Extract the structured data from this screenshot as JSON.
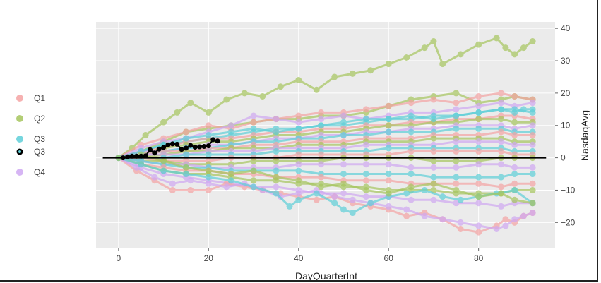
{
  "chart_data": {
    "type": "line",
    "xlabel": "DayQuarterInt",
    "ylabel": "NasdaqAvg",
    "xlim": [
      -5,
      97
    ],
    "ylim": [
      -28,
      42
    ],
    "x_ticks": [
      0,
      20,
      40,
      60,
      80
    ],
    "y_ticks": [
      40,
      30,
      20,
      10,
      0,
      -10,
      -20
    ],
    "y_axis_side": "right",
    "grid": true,
    "legend_placement": "left",
    "reference_line_y": 0,
    "colors": {
      "Q1": "#F4A3A3",
      "Q2": "#A6C65E",
      "Q3": "#5ECFD8",
      "Q4": "#CFA8F2",
      "highlight": "#000000",
      "plot_bg": "#EBEBEB",
      "grid": "#FFFFFF"
    },
    "legend": [
      {
        "label": "Q1",
        "color": "#F4A3A3",
        "style": "marker"
      },
      {
        "label": "Q2",
        "color": "#A6C65E",
        "style": "marker"
      },
      {
        "label": "Q3",
        "color": "#5ECFD8",
        "style": "marker"
      },
      {
        "label": "Q3",
        "color": "#000000",
        "style": "highlight"
      },
      {
        "label": "Q4",
        "color": "#CFA8F2",
        "style": "marker"
      }
    ],
    "series": [
      {
        "group": "Q2",
        "x": [
          0,
          3,
          6,
          10,
          13,
          16,
          20,
          24,
          28,
          32,
          36,
          40,
          44,
          48,
          52,
          56,
          60,
          64,
          68,
          70,
          72,
          76,
          80,
          84,
          86,
          88,
          90,
          92
        ],
        "y": [
          0,
          3,
          7,
          11,
          14,
          17,
          14,
          18,
          20,
          19,
          22,
          24,
          21,
          25,
          26,
          27,
          29,
          31,
          34,
          36,
          29,
          32,
          35,
          37,
          34,
          32,
          34,
          36
        ]
      },
      {
        "group": "Q2",
        "x": [
          0,
          5,
          10,
          15,
          20,
          25,
          30,
          35,
          40,
          45,
          50,
          55,
          60,
          65,
          70,
          75,
          80,
          85,
          88,
          92
        ],
        "y": [
          0,
          2,
          5,
          8,
          9,
          10,
          11,
          12,
          12,
          13,
          13,
          14,
          16,
          18,
          19,
          20,
          17,
          18,
          19,
          18
        ]
      },
      {
        "group": "Q1",
        "x": [
          0,
          5,
          10,
          15,
          20,
          25,
          30,
          35,
          40,
          45,
          50,
          55,
          60,
          65,
          70,
          75,
          80,
          85,
          88,
          92
        ],
        "y": [
          0,
          4,
          6,
          8,
          10,
          9,
          11,
          12,
          13,
          14,
          14,
          15,
          16,
          17,
          18,
          17,
          19,
          20,
          19,
          18
        ]
      },
      {
        "group": "Q4",
        "x": [
          0,
          5,
          10,
          15,
          20,
          25,
          30,
          35,
          40,
          45,
          50,
          55,
          60,
          65,
          70,
          75,
          80,
          85,
          88,
          92
        ],
        "y": [
          0,
          3,
          5,
          6,
          8,
          10,
          13,
          12,
          11,
          12,
          13,
          12,
          13,
          14,
          14,
          15,
          16,
          17,
          16,
          17
        ]
      },
      {
        "group": "Q3",
        "x": [
          0,
          5,
          10,
          15,
          20,
          25,
          30,
          35,
          40,
          45,
          50,
          55,
          60,
          65,
          70,
          75,
          80,
          85,
          88,
          92
        ],
        "y": [
          0,
          2,
          4,
          5,
          6,
          7,
          8,
          9,
          9,
          10,
          10,
          11,
          12,
          12,
          13,
          13,
          14,
          15,
          15,
          14
        ]
      },
      {
        "group": "Q1",
        "x": [
          0,
          5,
          10,
          15,
          20,
          25,
          30,
          35,
          40,
          45,
          50,
          55,
          60,
          65,
          70,
          75,
          80,
          85,
          88,
          92
        ],
        "y": [
          0,
          2,
          3,
          5,
          6,
          6,
          7,
          8,
          8,
          9,
          9,
          10,
          10,
          11,
          11,
          12,
          12,
          13,
          13,
          12
        ]
      },
      {
        "group": "Q2",
        "x": [
          0,
          5,
          10,
          15,
          20,
          25,
          30,
          35,
          40,
          45,
          50,
          55,
          60,
          65,
          70,
          75,
          80,
          85,
          88,
          92
        ],
        "y": [
          0,
          1,
          3,
          4,
          5,
          5,
          6,
          7,
          7,
          8,
          8,
          9,
          10,
          10,
          11,
          11,
          12,
          12,
          11,
          11
        ]
      },
      {
        "group": "Q4",
        "x": [
          0,
          5,
          10,
          15,
          20,
          25,
          30,
          35,
          40,
          45,
          50,
          55,
          60,
          65,
          70,
          75,
          80,
          85,
          88,
          92
        ],
        "y": [
          0,
          2,
          2,
          3,
          4,
          4,
          5,
          6,
          6,
          7,
          7,
          8,
          8,
          9,
          9,
          10,
          10,
          10,
          9,
          10
        ]
      },
      {
        "group": "Q3",
        "x": [
          0,
          5,
          10,
          15,
          20,
          25,
          30,
          35,
          40,
          45,
          50,
          55,
          60,
          65,
          70,
          75,
          80,
          85,
          88,
          92
        ],
        "y": [
          0,
          1,
          2,
          3,
          3,
          4,
          5,
          5,
          6,
          6,
          7,
          7,
          8,
          8,
          8,
          9,
          9,
          9,
          8,
          8
        ]
      },
      {
        "group": "Q1",
        "x": [
          0,
          5,
          10,
          15,
          20,
          25,
          30,
          35,
          40,
          45,
          50,
          55,
          60,
          65,
          70,
          75,
          80,
          85,
          88,
          92
        ],
        "y": [
          0,
          1,
          2,
          2,
          3,
          3,
          4,
          4,
          5,
          5,
          5,
          6,
          6,
          6,
          7,
          7,
          7,
          8,
          7,
          7
        ]
      },
      {
        "group": "Q2",
        "x": [
          0,
          5,
          10,
          15,
          20,
          25,
          30,
          35,
          40,
          45,
          50,
          55,
          60,
          65,
          70,
          75,
          80,
          85,
          88,
          92
        ],
        "y": [
          0,
          0,
          1,
          2,
          2,
          3,
          3,
          3,
          4,
          4,
          4,
          5,
          5,
          5,
          6,
          6,
          6,
          6,
          5,
          5
        ]
      },
      {
        "group": "Q4",
        "x": [
          0,
          5,
          10,
          15,
          20,
          25,
          30,
          35,
          40,
          45,
          50,
          55,
          60,
          65,
          70,
          75,
          80,
          85,
          88,
          92
        ],
        "y": [
          0,
          1,
          1,
          1,
          2,
          2,
          2,
          3,
          3,
          3,
          3,
          4,
          4,
          4,
          4,
          5,
          5,
          5,
          4,
          4
        ]
      },
      {
        "group": "Q3",
        "x": [
          0,
          5,
          10,
          15,
          20,
          25,
          30,
          35,
          40,
          45,
          50,
          55,
          60,
          65,
          70,
          75,
          80,
          85,
          88,
          92
        ],
        "y": [
          0,
          0,
          0,
          1,
          1,
          1,
          1,
          2,
          2,
          2,
          2,
          2,
          3,
          3,
          3,
          3,
          3,
          3,
          2,
          2
        ]
      },
      {
        "group": "Q1",
        "x": [
          0,
          5,
          10,
          15,
          20,
          25,
          30,
          35,
          40,
          45,
          50,
          55,
          60,
          65,
          70,
          75,
          80,
          85,
          88,
          92
        ],
        "y": [
          0,
          0,
          -1,
          -1,
          -1,
          0,
          0,
          0,
          1,
          1,
          1,
          1,
          1,
          2,
          2,
          2,
          2,
          2,
          1,
          1
        ]
      },
      {
        "group": "Q2",
        "x": [
          0,
          5,
          10,
          15,
          20,
          25,
          30,
          35,
          40,
          45,
          50,
          55,
          60,
          65,
          70,
          75,
          80,
          85,
          88,
          92
        ],
        "y": [
          0,
          -1,
          -1,
          -2,
          -2,
          -2,
          -1,
          -1,
          -1,
          -1,
          0,
          0,
          0,
          0,
          -1,
          -1,
          -1,
          0,
          0,
          0
        ]
      },
      {
        "group": "Q4",
        "x": [
          0,
          5,
          10,
          15,
          20,
          25,
          30,
          35,
          40,
          45,
          50,
          55,
          60,
          65,
          70,
          75,
          80,
          85,
          88,
          92
        ],
        "y": [
          0,
          -1,
          -2,
          -2,
          -3,
          -3,
          -3,
          -3,
          -2,
          -2,
          -2,
          -2,
          -2,
          -3,
          -3,
          -3,
          -2,
          -2,
          -3,
          -3
        ]
      },
      {
        "group": "Q3",
        "x": [
          0,
          5,
          10,
          15,
          20,
          25,
          30,
          35,
          40,
          45,
          50,
          55,
          60,
          65,
          70,
          75,
          80,
          85,
          88,
          92
        ],
        "y": [
          0,
          -1,
          -2,
          -3,
          -3,
          -4,
          -4,
          -4,
          -4,
          -5,
          -5,
          -5,
          -5,
          -5,
          -6,
          -6,
          -6,
          -6,
          -5,
          -5
        ]
      },
      {
        "group": "Q1",
        "x": [
          0,
          5,
          10,
          15,
          20,
          25,
          30,
          35,
          40,
          45,
          50,
          55,
          60,
          65,
          70,
          75,
          80,
          85,
          88,
          92
        ],
        "y": [
          0,
          -2,
          -3,
          -4,
          -4,
          -5,
          -5,
          -6,
          -6,
          -6,
          -7,
          -7,
          -7,
          -8,
          -8,
          -8,
          -8,
          -9,
          -8,
          -8
        ]
      },
      {
        "group": "Q2",
        "x": [
          0,
          5,
          10,
          15,
          20,
          25,
          30,
          35,
          40,
          45,
          50,
          55,
          60,
          65,
          70,
          75,
          80,
          85,
          88,
          92
        ],
        "y": [
          0,
          -2,
          -4,
          -5,
          -5,
          -6,
          -7,
          -7,
          -8,
          -8,
          -9,
          -9,
          -10,
          -10,
          -10,
          -11,
          -11,
          -11,
          -10,
          -10
        ]
      },
      {
        "group": "Q4",
        "x": [
          0,
          5,
          10,
          15,
          20,
          25,
          30,
          35,
          40,
          45,
          50,
          55,
          60,
          65,
          70,
          75,
          80,
          85,
          88,
          92
        ],
        "y": [
          0,
          -3,
          -5,
          -6,
          -7,
          -8,
          -9,
          -9,
          -10,
          -11,
          -11,
          -12,
          -12,
          -13,
          -13,
          -14,
          -14,
          -15,
          -14,
          -14
        ]
      },
      {
        "group": "Q1",
        "x": [
          0,
          4,
          8,
          12,
          16,
          20,
          24,
          28,
          32,
          36,
          40,
          44,
          48,
          52,
          56,
          60,
          64,
          68,
          72,
          76,
          80,
          84,
          86,
          88,
          90,
          92
        ],
        "y": [
          0,
          -4,
          -7,
          -10,
          -10,
          -10,
          -8,
          -9,
          -10,
          -11,
          -12,
          -13,
          -12,
          -14,
          -15,
          -16,
          -18,
          -17,
          -19,
          -22,
          -23,
          -21,
          -19,
          -20,
          -18,
          -17
        ]
      },
      {
        "group": "Q4",
        "x": [
          0,
          4,
          8,
          12,
          16,
          20,
          24,
          28,
          32,
          36,
          40,
          44,
          48,
          52,
          56,
          60,
          64,
          68,
          72,
          76,
          80,
          84,
          86,
          88,
          90,
          92
        ],
        "y": [
          0,
          -3,
          -6,
          -8,
          -7,
          -8,
          -9,
          -8,
          -10,
          -12,
          -11,
          -10,
          -12,
          -13,
          -14,
          -15,
          -16,
          -18,
          -19,
          -20,
          -21,
          -22,
          -21,
          -19,
          -18,
          -17
        ]
      },
      {
        "group": "Q3",
        "x": [
          0,
          5,
          10,
          15,
          20,
          25,
          30,
          35,
          38,
          40,
          44,
          48,
          50,
          52,
          56,
          60,
          64,
          68,
          72,
          76,
          80,
          84,
          88,
          92
        ],
        "y": [
          0,
          -2,
          -4,
          -5,
          -6,
          -7,
          -9,
          -11,
          -15,
          -13,
          -11,
          -14,
          -16,
          -17,
          -14,
          -12,
          -11,
          -10,
          -12,
          -13,
          -12,
          -11,
          -10,
          -14
        ]
      },
      {
        "group": "Q3",
        "x": [
          0,
          5,
          10,
          15,
          20,
          25,
          30,
          35,
          40,
          45,
          50,
          55,
          60,
          65,
          70,
          75,
          80,
          85,
          88,
          90,
          92
        ],
        "y": [
          0,
          2,
          4,
          6,
          7,
          8,
          9,
          8,
          9,
          10,
          11,
          12,
          12,
          13,
          12,
          13,
          14,
          15,
          14,
          15,
          15
        ]
      },
      {
        "group": "Q2",
        "x": [
          0,
          5,
          10,
          15,
          20,
          25,
          30,
          35,
          40,
          45,
          50,
          55,
          60,
          65,
          70,
          75,
          80,
          85,
          88,
          92
        ],
        "y": [
          0,
          1,
          -1,
          -3,
          -4,
          -5,
          -4,
          -6,
          -7,
          -9,
          -8,
          -10,
          -11,
          -9,
          -8,
          -10,
          -12,
          -11,
          -13,
          -14
        ]
      }
    ],
    "highlight_series": {
      "group": "Q3",
      "x": [
        1,
        2,
        3,
        4,
        5,
        6,
        7,
        8,
        9,
        10,
        11,
        12,
        13,
        14,
        15,
        16,
        17,
        18,
        19,
        20,
        21,
        22
      ],
      "y": [
        0,
        0.3,
        0.5,
        0.5,
        0.5,
        0.6,
        2.5,
        1.5,
        2.7,
        3.2,
        4,
        4.3,
        4.2,
        2.6,
        3,
        3.8,
        3.3,
        3.4,
        3.5,
        3.7,
        5.6,
        5.2
      ]
    }
  }
}
